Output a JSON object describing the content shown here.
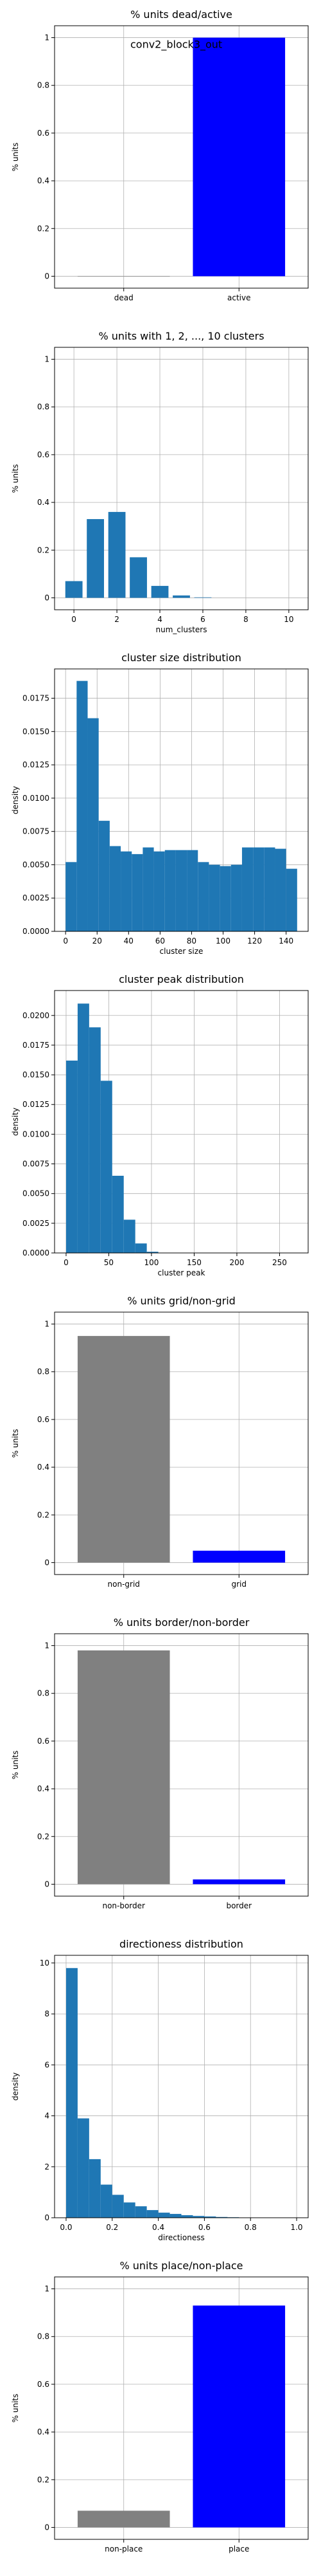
{
  "chart_data": [
    {
      "type": "bar",
      "title": "% units dead/active",
      "xlabel": "",
      "ylabel": "% units",
      "categories": [
        "dead",
        "active"
      ],
      "values": [
        0.0,
        1.0
      ],
      "colors": [
        "#808080",
        "#0000ff"
      ],
      "ylim": [
        -0.05,
        1.05
      ],
      "yticks": [
        0.0,
        0.2,
        0.4,
        0.6,
        0.8,
        1.0
      ],
      "grid": true,
      "annotation": "conv2_block3_out"
    },
    {
      "type": "bar",
      "title": "% units with 1, 2, ..., 10 clusters",
      "xlabel": "num_clusters",
      "ylabel": "% units",
      "x": [
        0,
        1,
        2,
        3,
        4,
        5,
        6,
        7,
        8,
        9,
        10
      ],
      "values": [
        0.07,
        0.33,
        0.36,
        0.17,
        0.05,
        0.01,
        0.002,
        0.0,
        0.0,
        0.0,
        0.0
      ],
      "color": "#1f77b4",
      "xlim": [
        -0.9,
        10.9
      ],
      "ylim": [
        -0.05,
        1.05
      ],
      "xticks": [
        0,
        2,
        4,
        6,
        8,
        10
      ],
      "yticks": [
        0.0,
        0.2,
        0.4,
        0.6,
        0.8,
        1.0
      ],
      "grid": true
    },
    {
      "type": "bar",
      "title": "cluster size distribution",
      "xlabel": "cluster size",
      "ylabel": "density",
      "bin_edges": [
        0,
        7,
        14,
        21,
        28,
        35,
        42,
        49,
        56,
        63,
        70,
        77,
        84,
        91,
        98,
        105,
        112,
        119,
        126,
        133,
        140,
        147
      ],
      "values": [
        0.0052,
        0.0188,
        0.016,
        0.0083,
        0.0064,
        0.006,
        0.0058,
        0.0063,
        0.006,
        0.0061,
        0.0061,
        0.0061,
        0.0052,
        0.005,
        0.0049,
        0.005,
        0.0063,
        0.0063,
        0.0063,
        0.0062,
        0.0047
      ],
      "color": "#1f77b4",
      "xlim": [
        -7,
        154
      ],
      "ylim": [
        0,
        0.0197
      ],
      "xticks": [
        0,
        20,
        40,
        60,
        80,
        100,
        120,
        140
      ],
      "yticks": [
        0.0,
        0.0025,
        0.005,
        0.0075,
        0.01,
        0.0125,
        0.015,
        0.0175
      ],
      "ytick_labels": [
        "0.0000",
        "0.0025",
        "0.0050",
        "0.0075",
        "0.0100",
        "0.0125",
        "0.0150",
        "0.0175"
      ],
      "grid": true
    },
    {
      "type": "bar",
      "title": "cluster peak distribution",
      "xlabel": "cluster peak",
      "ylabel": "density",
      "bin_edges": [
        0,
        13.5,
        27,
        40.5,
        54,
        67.5,
        81,
        94.5,
        108,
        121.5,
        135,
        148.5,
        162,
        175.5,
        189,
        202.5,
        216,
        229.5,
        243,
        256.5,
        270
      ],
      "values": [
        0.0162,
        0.021,
        0.019,
        0.0145,
        0.0065,
        0.0028,
        0.0008,
        0.0001,
        0.0,
        0.0,
        0.0,
        0.0,
        0.0,
        0.0,
        0.0,
        0.0,
        0.0,
        0.0,
        0.0,
        0.0
      ],
      "color": "#1f77b4",
      "xlim": [
        -13.5,
        283.5
      ],
      "ylim": [
        0,
        0.0221
      ],
      "xticks": [
        0,
        50,
        100,
        150,
        200,
        250
      ],
      "yticks": [
        0.0,
        0.0025,
        0.005,
        0.0075,
        0.01,
        0.0125,
        0.015,
        0.0175,
        0.02
      ],
      "ytick_labels": [
        "0.0000",
        "0.0025",
        "0.0050",
        "0.0075",
        "0.0100",
        "0.0125",
        "0.0150",
        "0.0175",
        "0.0200"
      ],
      "grid": true
    },
    {
      "type": "bar",
      "title": "% units grid/non-grid",
      "xlabel": "",
      "ylabel": "% units",
      "categories": [
        "non-grid",
        "grid"
      ],
      "values": [
        0.95,
        0.05
      ],
      "colors": [
        "#808080",
        "#0000ff"
      ],
      "ylim": [
        -0.05,
        1.05
      ],
      "yticks": [
        0.0,
        0.2,
        0.4,
        0.6,
        0.8,
        1.0
      ],
      "grid": true
    },
    {
      "type": "bar",
      "title": "% units border/non-border",
      "xlabel": "",
      "ylabel": "% units",
      "categories": [
        "non-border",
        "border"
      ],
      "values": [
        0.98,
        0.02
      ],
      "colors": [
        "#808080",
        "#0000ff"
      ],
      "ylim": [
        -0.05,
        1.05
      ],
      "yticks": [
        0.0,
        0.2,
        0.4,
        0.6,
        0.8,
        1.0
      ],
      "grid": true
    },
    {
      "type": "bar",
      "title": "directioness distribution",
      "xlabel": "directioness",
      "ylabel": "density",
      "bin_edges": [
        0,
        0.05,
        0.1,
        0.15,
        0.2,
        0.25,
        0.3,
        0.35,
        0.4,
        0.45,
        0.5,
        0.55,
        0.6,
        0.65,
        0.7,
        0.75,
        0.8,
        0.85,
        0.9,
        0.95,
        1.0
      ],
      "values": [
        9.8,
        3.9,
        2.3,
        1.3,
        0.9,
        0.6,
        0.45,
        0.3,
        0.2,
        0.15,
        0.1,
        0.07,
        0.05,
        0.03,
        0.02,
        0.01,
        0.01,
        0.0,
        0.0,
        0.0
      ],
      "color": "#1f77b4",
      "xlim": [
        -0.05,
        1.05
      ],
      "ylim": [
        0,
        10.3
      ],
      "xticks": [
        0.0,
        0.2,
        0.4,
        0.6,
        0.8,
        1.0
      ],
      "xtick_labels": [
        "0.0",
        "0.2",
        "0.4",
        "0.6",
        "0.8",
        "1.0"
      ],
      "yticks": [
        0,
        2,
        4,
        6,
        8,
        10
      ],
      "grid": true
    },
    {
      "type": "bar",
      "title": "% units place/non-place",
      "xlabel": "",
      "ylabel": "% units",
      "categories": [
        "non-place",
        "place"
      ],
      "values": [
        0.07,
        0.93
      ],
      "colors": [
        "#808080",
        "#0000ff"
      ],
      "ylim": [
        -0.05,
        1.05
      ],
      "yticks": [
        0.0,
        0.2,
        0.4,
        0.6,
        0.8,
        1.0
      ],
      "grid": true
    }
  ]
}
